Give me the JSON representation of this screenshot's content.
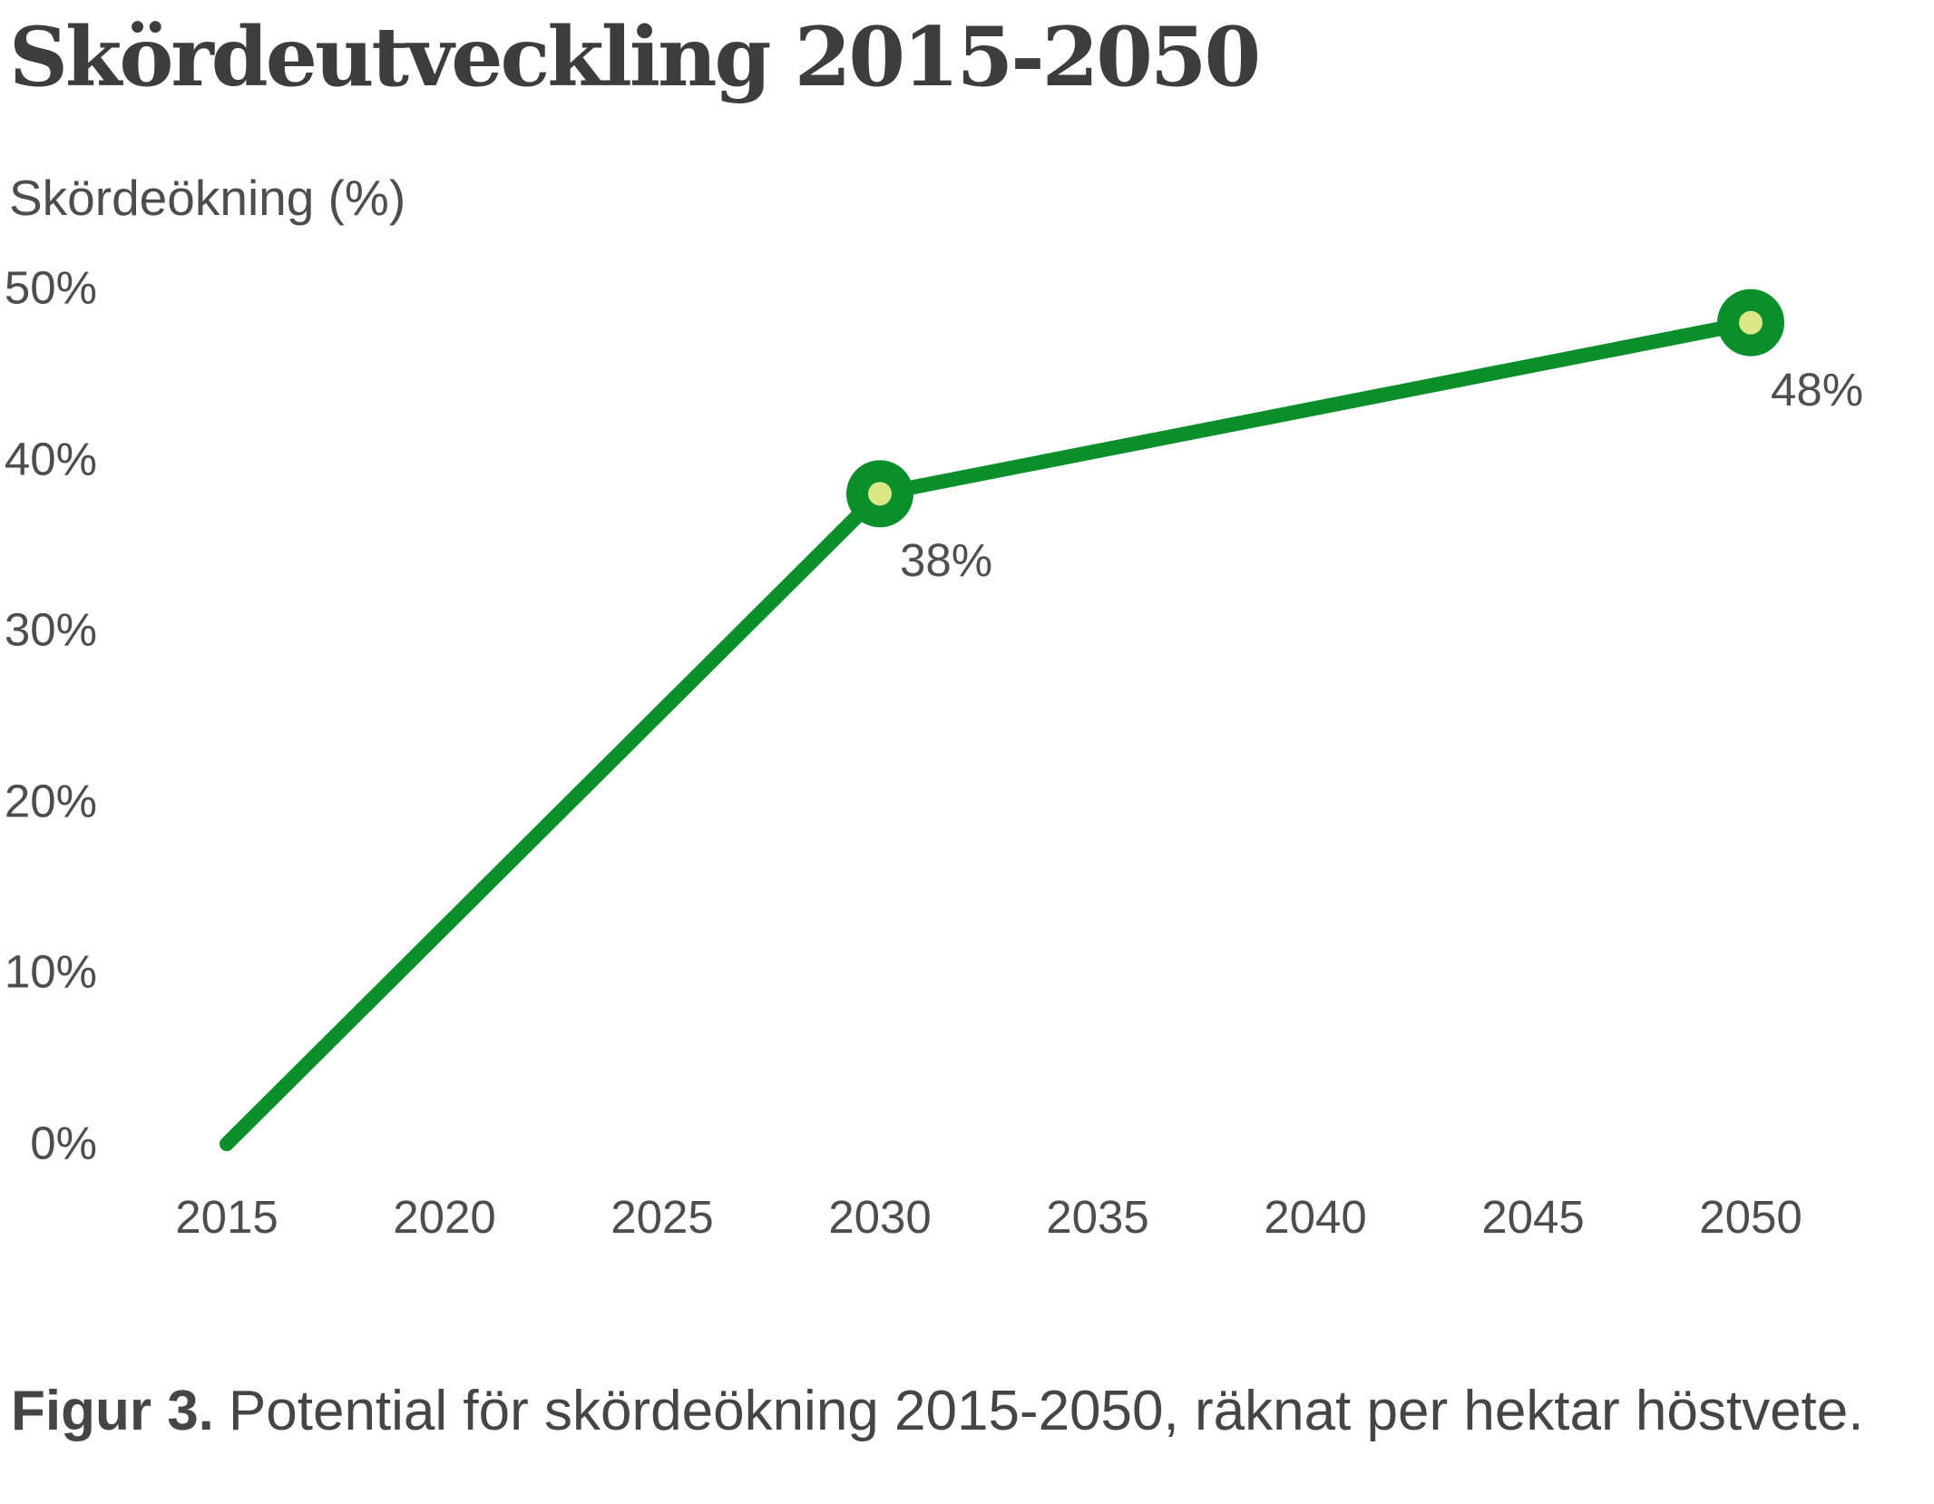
{
  "page": {
    "title": "Skördeutveckling 2015-2050",
    "y_axis_title": "Skördeökning (%)",
    "caption_bold": "Figur 3.",
    "caption_text": "Potential för skördeökning 2015-2050, räknat per hektar höstvete."
  },
  "colors": {
    "background": "#ffffff",
    "line_green": "#0b8f2b",
    "marker_inner": "#dce885",
    "title_text": "#3d3d3d",
    "tick_label_text": "#4d4d4d",
    "data_label_text": "#4f4f4f",
    "caption_text": "#454545"
  },
  "chart_data": {
    "type": "line",
    "title": "Skördeutveckling 2015-2050",
    "ylabel": "Skördeökning (%)",
    "xlabel": "",
    "points": [
      {
        "x": 2015,
        "y": 0,
        "label": "",
        "marker": false
      },
      {
        "x": 2030,
        "y": 38,
        "label": "38%",
        "marker": true
      },
      {
        "x": 2050,
        "y": 48,
        "label": "48%",
        "marker": true
      }
    ],
    "xtick_values": [
      2015,
      2020,
      2025,
      2030,
      2035,
      2040,
      2045,
      2050
    ],
    "xtick_labels": [
      "2015",
      "2020",
      "2025",
      "2030",
      "2035",
      "2040",
      "2045",
      "2050"
    ],
    "ytick_values": [
      0,
      10,
      20,
      30,
      40,
      50
    ],
    "ytick_labels": [
      "0%",
      "10%",
      "20%",
      "30%",
      "40%",
      "50%"
    ],
    "xlim": [
      2015,
      2050
    ],
    "ylim": [
      0,
      50
    ],
    "grid": false,
    "legend": false,
    "axis_lines": false,
    "caption": "Figur 3. Potential för skördeökning 2015-2050, räknat per hektar höstvete."
  }
}
